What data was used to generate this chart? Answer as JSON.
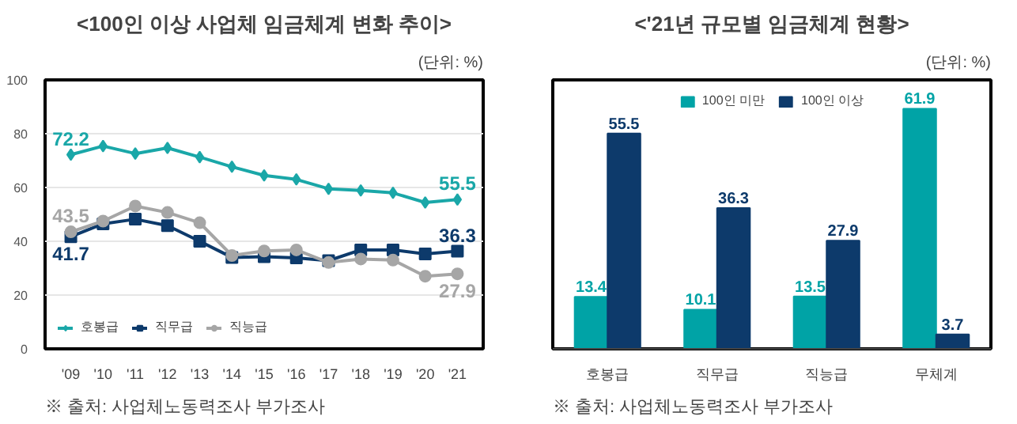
{
  "chart_data": [
    {
      "type": "line",
      "title": "<100인 이상 사업체 임금체계 변화 추이>",
      "subtitle": "(단위: %)",
      "categories": [
        "'09",
        "'10",
        "'11",
        "'12",
        "'13",
        "'14",
        "'15",
        "'16",
        "'17",
        "'18",
        "'19",
        "'20",
        "'21"
      ],
      "series": [
        {
          "name": "호봉급",
          "color": "#1aa7a8",
          "marker": "diamond",
          "values": [
            72.2,
            75.4,
            72.6,
            74.7,
            71.3,
            67.7,
            64.5,
            63.0,
            59.5,
            58.9,
            58.0,
            54.4,
            55.5
          ],
          "value_labels": [
            "72.2",
            null,
            null,
            null,
            null,
            null,
            null,
            null,
            null,
            null,
            null,
            null,
            "55.5"
          ]
        },
        {
          "name": "직무급",
          "color": "#0d3a6b",
          "marker": "square",
          "values": [
            41.7,
            46.5,
            48.2,
            45.8,
            40.0,
            34.0,
            34.3,
            33.8,
            32.8,
            36.8,
            36.8,
            35.3,
            36.3
          ],
          "value_labels": [
            "41.7",
            null,
            null,
            null,
            null,
            null,
            null,
            null,
            null,
            null,
            null,
            null,
            "36.3"
          ]
        },
        {
          "name": "직능급",
          "color": "#a6a6a6",
          "marker": "circle",
          "values": [
            43.5,
            47.5,
            53.1,
            50.7,
            46.9,
            34.7,
            36.4,
            36.8,
            32.1,
            33.4,
            33.0,
            27.0,
            27.9
          ],
          "value_labels": [
            "43.5",
            null,
            null,
            null,
            null,
            null,
            null,
            null,
            null,
            null,
            null,
            null,
            "27.9"
          ]
        }
      ],
      "ylim": [
        0,
        100
      ],
      "yticks": [
        0,
        20,
        40,
        60,
        80,
        100
      ],
      "grid": "y",
      "legend": "bottom left",
      "annotations": [
        "※ 출처: 사업체노동력조사 부가조사"
      ]
    },
    {
      "type": "bar",
      "title": "<'21년 규모별 임금체계 현황>",
      "subtitle": "(단위: %)",
      "categories": [
        "호봉급",
        "직무급",
        "직능급",
        "무체계"
      ],
      "series": [
        {
          "name": "100인 미만",
          "color": "#00a3a6",
          "values": [
            13.4,
            10.1,
            13.5,
            61.9
          ]
        },
        {
          "name": "100인 이상",
          "color": "#0d3a6b",
          "values": [
            55.5,
            36.3,
            27.9,
            3.7
          ]
        }
      ],
      "data_labels": true,
      "grid": false,
      "legend": "top",
      "annotations": [
        "※ 출처: 사업체노동력조사 부가조사"
      ]
    }
  ]
}
